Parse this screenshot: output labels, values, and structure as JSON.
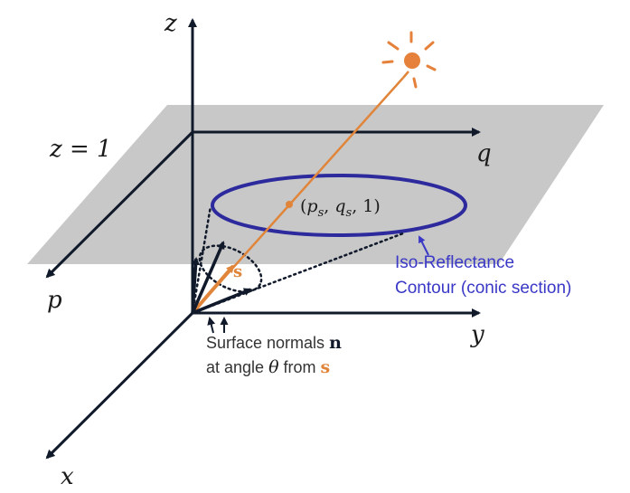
{
  "diagram": {
    "colors": {
      "plane_fill": "#c8c8c8",
      "axis": "#111a2b",
      "contour": "#2d2a9e",
      "light_ray": "#e0853a",
      "sun": "#e5813a",
      "contour_label": "#3a38c6",
      "caption_text": "#333333"
    },
    "axes": {
      "z_label": "z",
      "q_label": "q",
      "p_label": "p",
      "y_label": "y",
      "x_label": "x"
    },
    "plane_label": "z = 1",
    "center_point_label": "(p_s, q_s, 1)",
    "center_point": {
      "open": "(",
      "p": "p",
      "p_sub": "s",
      "comma1": ", ",
      "q": "q",
      "q_sub": "s",
      "rest": ", 1)"
    },
    "source_vector_label": "s",
    "contour_label": {
      "line1": "Iso-Reflectance",
      "line2": "Contour (conic section)"
    },
    "caption": {
      "line1_text": "Surface normals ",
      "line1_symbol": "n",
      "line2_prefix": "at angle ",
      "line2_theta": "θ",
      "line2_mid": " from ",
      "line2_symbol": "s"
    },
    "icons": {
      "sun": "sun-icon"
    }
  }
}
